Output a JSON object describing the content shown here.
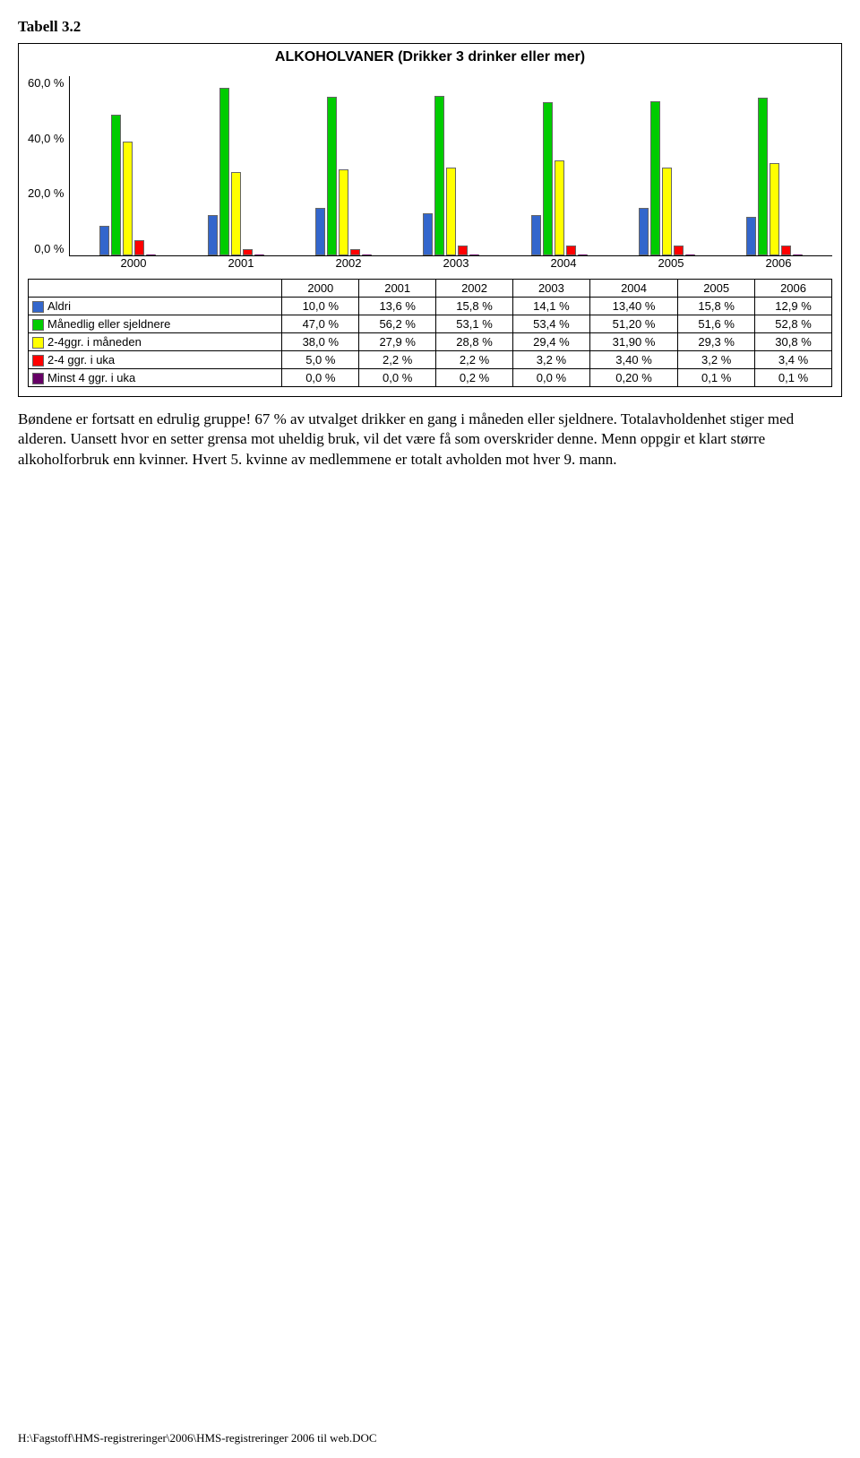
{
  "caption": "Tabell 3.2",
  "chart": {
    "type": "bar",
    "title": "ALKOHOLVANER (Drikker 3 drinker eller mer)",
    "y_ticks": [
      "60,0 %",
      "40,0 %",
      "20,0 %",
      "0,0 %"
    ],
    "y_max": 60,
    "categories": [
      "2000",
      "2001",
      "2002",
      "2003",
      "2004",
      "2005",
      "2006"
    ],
    "series": [
      {
        "name": "Aldri",
        "label": "Aldri",
        "color": "#3366cc",
        "values": [
          10.0,
          13.6,
          15.8,
          14.1,
          13.4,
          15.8,
          12.9
        ],
        "display": [
          "10,0 %",
          "13,6 %",
          "15,8 %",
          "14,1 %",
          "13,40 %",
          "15,8 %",
          "12,9 %"
        ]
      },
      {
        "name": "Månedlig eller sjeldnere",
        "label": "Månedlig eller sjeldnere",
        "color": "#00cc00",
        "values": [
          47.0,
          56.2,
          53.1,
          53.4,
          51.2,
          51.6,
          52.8
        ],
        "display": [
          "47,0 %",
          "56,2 %",
          "53,1 %",
          "53,4 %",
          "51,20 %",
          "51,6 %",
          "52,8 %"
        ]
      },
      {
        "name": "2-4ggr. i måneden",
        "label": "2-4ggr. i måneden",
        "color": "#ffff00",
        "values": [
          38.0,
          27.9,
          28.8,
          29.4,
          31.9,
          29.3,
          30.8
        ],
        "display": [
          "38,0 %",
          "27,9 %",
          "28,8 %",
          "29,4 %",
          "31,90 %",
          "29,3 %",
          "30,8 %"
        ]
      },
      {
        "name": "2-4 ggr. i uka",
        "label": "2-4 ggr. i uka",
        "color": "#ff0000",
        "values": [
          5.0,
          2.2,
          2.2,
          3.2,
          3.4,
          3.2,
          3.4
        ],
        "display": [
          "5,0 %",
          "2,2 %",
          "2,2 %",
          "3,2 %",
          "3,40 %",
          "3,2 %",
          "3,4 %"
        ]
      },
      {
        "name": "Minst 4 ggr. i uka",
        "label": "Minst 4 ggr. i uka",
        "color": "#660066",
        "values": [
          0.0,
          0.0,
          0.2,
          0.0,
          0.2,
          0.1,
          0.1
        ],
        "display": [
          "0,0 %",
          "0,0 %",
          "0,2 %",
          "0,0 %",
          "0,20 %",
          "0,1 %",
          "0,1 %"
        ]
      }
    ]
  },
  "paragraph": "Bøndene er fortsatt en edrulig gruppe! 67 % av utvalget drikker en gang i måneden eller sjeldnere. Totalavholdenhet stiger med alderen. Uansett hvor en setter grensa mot uheldig bruk, vil det være få som overskrider denne. Menn oppgir et klart større alkoholforbruk enn kvinner. Hvert 5. kvinne av medlemmene er totalt avholden mot hver 9. mann.",
  "footer": "H:\\Fagstoff\\HMS-registreringer\\2006\\HMS-registreringer 2006 til web.DOC"
}
